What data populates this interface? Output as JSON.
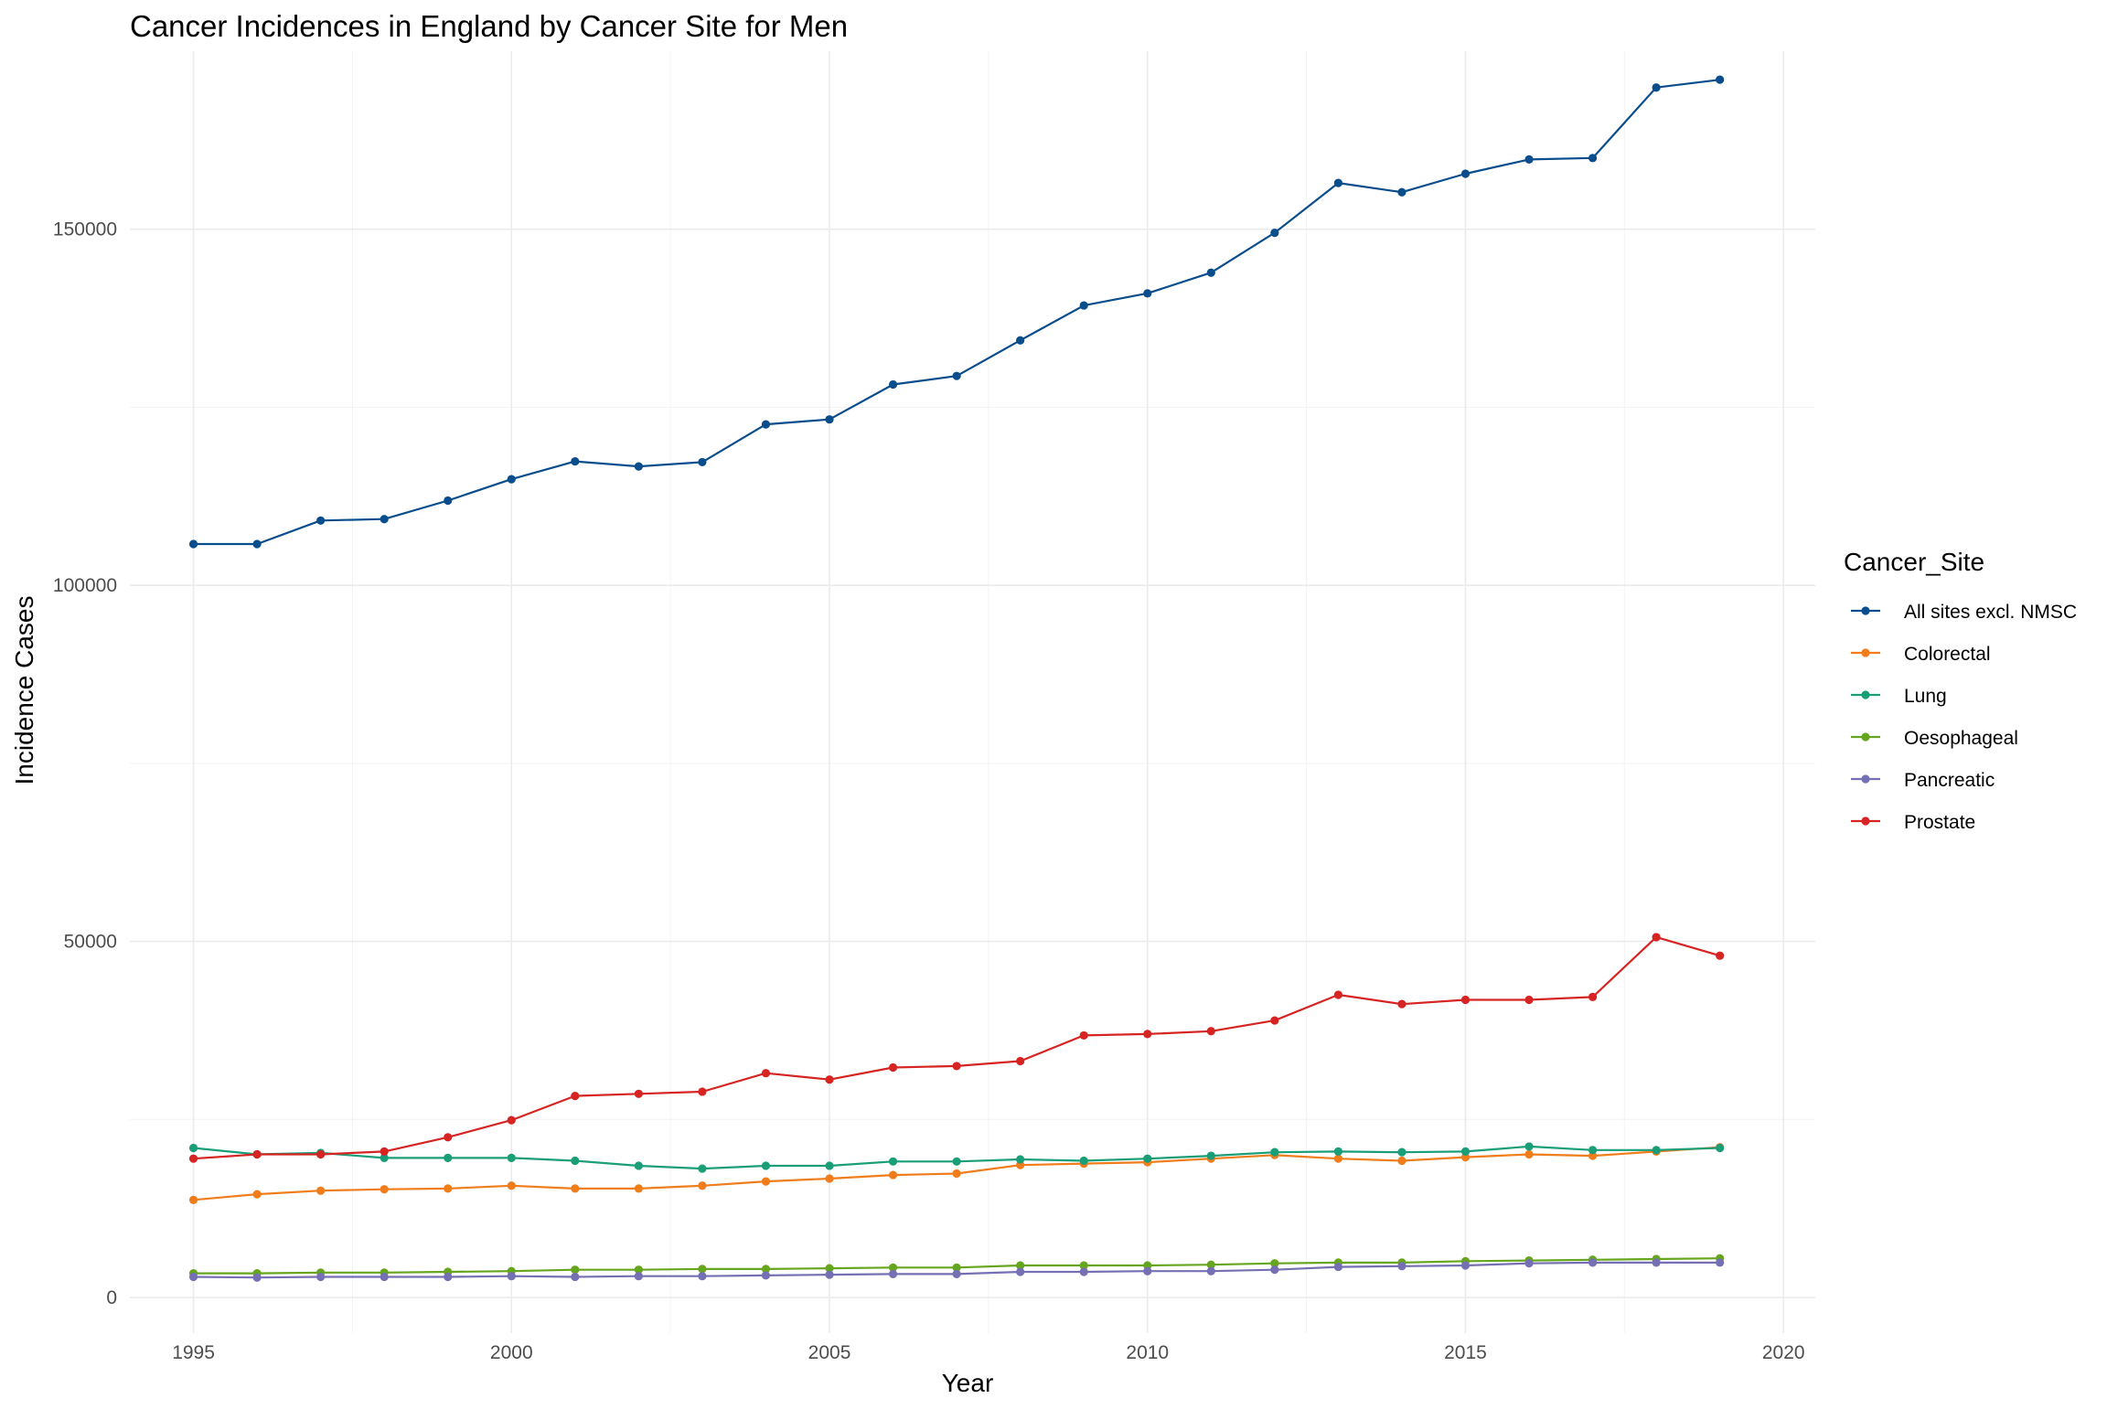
{
  "chart_data": {
    "type": "line",
    "title": "Cancer Incidences in England by Cancer Site for Men",
    "xlabel": "Year",
    "ylabel": "Incidence Cases",
    "legend_title": "Cancer_Site",
    "legend_position": "right",
    "grid": true,
    "xlim": [
      1994,
      2020.5
    ],
    "ylim": [
      -5000,
      175000
    ],
    "x_ticks": [
      1995,
      2000,
      2005,
      2010,
      2015,
      2020
    ],
    "y_ticks": [
      0,
      50000,
      100000,
      150000
    ],
    "x": [
      1995,
      1996,
      1997,
      1998,
      1999,
      2000,
      2001,
      2002,
      2003,
      2004,
      2005,
      2006,
      2007,
      2008,
      2009,
      2010,
      2011,
      2012,
      2013,
      2014,
      2015,
      2016,
      2017,
      2018,
      2019
    ],
    "series": [
      {
        "name": "All sites excl. NMSC",
        "color": "#0a4d8c",
        "values": [
          105800,
          105800,
          109100,
          109300,
          111900,
          114900,
          117400,
          116700,
          117300,
          122600,
          123300,
          128200,
          129400,
          134400,
          139300,
          141000,
          143900,
          149500,
          156500,
          155200,
          157800,
          159800,
          160000,
          169900,
          171000
        ]
      },
      {
        "name": "Colorectal",
        "color": "#f07c1a",
        "values": [
          13700,
          14500,
          15000,
          15200,
          15300,
          15700,
          15300,
          15300,
          15700,
          16300,
          16700,
          17200,
          17400,
          18600,
          18800,
          19000,
          19500,
          20000,
          19500,
          19200,
          19700,
          20100,
          19900,
          20500,
          21100
        ]
      },
      {
        "name": "Lung",
        "color": "#1a9e77",
        "values": [
          21000,
          20100,
          20300,
          19600,
          19600,
          19600,
          19200,
          18500,
          18100,
          18500,
          18500,
          19100,
          19100,
          19400,
          19200,
          19500,
          19900,
          20400,
          20500,
          20400,
          20500,
          21200,
          20700,
          20700,
          21000
        ]
      },
      {
        "name": "Oesophageal",
        "color": "#66a61e",
        "values": [
          3400,
          3400,
          3500,
          3500,
          3600,
          3700,
          3900,
          3900,
          4000,
          4000,
          4100,
          4200,
          4200,
          4500,
          4500,
          4500,
          4600,
          4800,
          4900,
          4900,
          5100,
          5200,
          5300,
          5400,
          5500
        ]
      },
      {
        "name": "Pancreatic",
        "color": "#7570b3",
        "values": [
          2900,
          2800,
          2900,
          2900,
          2900,
          3000,
          2900,
          3000,
          3000,
          3100,
          3200,
          3300,
          3300,
          3600,
          3600,
          3700,
          3700,
          3900,
          4300,
          4400,
          4500,
          4800,
          4900,
          4900,
          4900
        ]
      },
      {
        "name": "Prostate",
        "color": "#d62422",
        "values": [
          19500,
          20100,
          20100,
          20500,
          22500,
          24900,
          28300,
          28600,
          28900,
          31500,
          30600,
          32300,
          32500,
          33200,
          36800,
          37000,
          37400,
          38900,
          42500,
          41200,
          41800,
          41800,
          42200,
          50600,
          48000
        ]
      }
    ]
  }
}
